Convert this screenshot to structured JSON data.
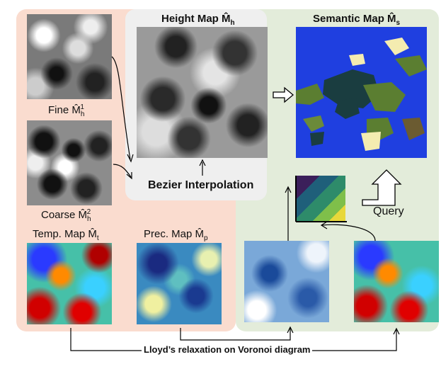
{
  "labels": {
    "fine": "Fine M̂",
    "fine_sub": "h",
    "fine_sup": "1",
    "coarse": "Coarse M̂",
    "coarse_sub": "h",
    "coarse_sup": "2",
    "height_map": "Height Map M̂",
    "height_map_sub": "h",
    "semantic_map": "Semantic Map M̂",
    "semantic_map_sub": "s",
    "bezier": "Bezier Interpolation",
    "query": "Query",
    "temp_map": "Temp. Map M̂",
    "temp_map_sub": "t",
    "prec_map": "Prec. Map M̂",
    "prec_map_sub": "p",
    "lloyd": "Lloyd’s relaxation on Voronoi diagram"
  },
  "colors": {
    "left_panel": "#fadccf",
    "right_panel": "#e3ecda",
    "center_panel": "#efefef",
    "ocean": "#1f3fe0",
    "land_dark": "#1a3d40",
    "land_olive": "#5b7e31",
    "land_sand": "#f4ecb0"
  }
}
